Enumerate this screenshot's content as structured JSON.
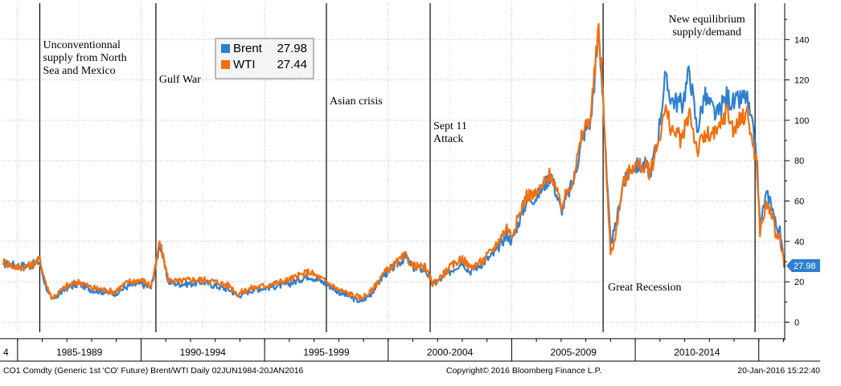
{
  "chart_data": {
    "type": "line",
    "title": "",
    "xlabel": "",
    "ylabel": "",
    "ylim": [
      -5,
      158
    ],
    "y_ticks": [
      0,
      20,
      40,
      60,
      80,
      100,
      120,
      140
    ],
    "grid": true,
    "legend_placement": "top-left",
    "x_start": 1984.42,
    "x_end": 2016.05,
    "x_categories": [
      {
        "label": "4",
        "start": 1984.42,
        "end": 1985.0
      },
      {
        "label": "1985-1989",
        "start": 1985.0,
        "end": 1990.0
      },
      {
        "label": "1990-1994",
        "start": 1990.0,
        "end": 1995.0
      },
      {
        "label": "1995-1999",
        "start": 1995.0,
        "end": 2000.0
      },
      {
        "label": "2000-2004",
        "start": 2000.0,
        "end": 2005.0
      },
      {
        "label": "2005-2009",
        "start": 2005.0,
        "end": 2010.0
      },
      {
        "label": "2010-2014",
        "start": 2010.0,
        "end": 2015.0
      },
      {
        "label": "",
        "start": 2015.0,
        "end": 2016.05
      }
    ],
    "series": [
      {
        "name": "Brent",
        "last_value": "27.98",
        "color": "#2f7fd0",
        "points": [
          [
            1984.42,
            29
          ],
          [
            1985.0,
            28
          ],
          [
            1985.5,
            28
          ],
          [
            1985.9,
            30
          ],
          [
            1986.0,
            24
          ],
          [
            1986.2,
            16
          ],
          [
            1986.4,
            11
          ],
          [
            1986.7,
            14
          ],
          [
            1987.0,
            17
          ],
          [
            1987.5,
            19
          ],
          [
            1988.0,
            16
          ],
          [
            1988.5,
            15
          ],
          [
            1988.9,
            14
          ],
          [
            1989.5,
            18
          ],
          [
            1990.0,
            19
          ],
          [
            1990.4,
            17
          ],
          [
            1990.6,
            28
          ],
          [
            1990.75,
            39
          ],
          [
            1990.9,
            31
          ],
          [
            1991.1,
            20
          ],
          [
            1991.5,
            19
          ],
          [
            1992.0,
            19
          ],
          [
            1992.5,
            20
          ],
          [
            1993.0,
            18
          ],
          [
            1993.6,
            16
          ],
          [
            1993.9,
            13
          ],
          [
            1994.5,
            16
          ],
          [
            1995.0,
            17
          ],
          [
            1996.0,
            19
          ],
          [
            1996.8,
            23
          ],
          [
            1997.5,
            19
          ],
          [
            1998.0,
            15
          ],
          [
            1998.9,
            10
          ],
          [
            1999.3,
            14
          ],
          [
            1999.8,
            23
          ],
          [
            2000.2,
            27
          ],
          [
            2000.7,
            32
          ],
          [
            2001.0,
            27
          ],
          [
            2001.5,
            26
          ],
          [
            2001.8,
            19
          ],
          [
            2002.0,
            20
          ],
          [
            2002.5,
            25
          ],
          [
            2003.0,
            30
          ],
          [
            2003.3,
            25
          ],
          [
            2003.8,
            29
          ],
          [
            2004.3,
            34
          ],
          [
            2004.8,
            43
          ],
          [
            2005.0,
            40
          ],
          [
            2005.6,
            60
          ],
          [
            2006.0,
            62
          ],
          [
            2006.6,
            73
          ],
          [
            2007.0,
            55
          ],
          [
            2007.5,
            70
          ],
          [
            2007.9,
            93
          ],
          [
            2008.2,
            100
          ],
          [
            2008.52,
            143
          ],
          [
            2008.7,
            112
          ],
          [
            2008.85,
            70
          ],
          [
            2009.0,
            40
          ],
          [
            2009.15,
            44
          ],
          [
            2009.5,
            68
          ],
          [
            2009.9,
            77
          ],
          [
            2010.4,
            78
          ],
          [
            2010.6,
            74
          ],
          [
            2010.9,
            90
          ],
          [
            2011.2,
            120
          ],
          [
            2011.5,
            110
          ],
          [
            2011.9,
            108
          ],
          [
            2012.2,
            125
          ],
          [
            2012.5,
            95
          ],
          [
            2012.8,
            112
          ],
          [
            2013.3,
            102
          ],
          [
            2013.7,
            112
          ],
          [
            2014.0,
            108
          ],
          [
            2014.5,
            112
          ],
          [
            2014.9,
            85
          ],
          [
            2015.05,
            48
          ],
          [
            2015.3,
            63
          ],
          [
            2015.5,
            60
          ],
          [
            2015.7,
            48
          ],
          [
            2015.85,
            45
          ],
          [
            2016.0,
            31
          ],
          [
            2016.05,
            27.98
          ]
        ]
      },
      {
        "name": "WTI",
        "last_value": "27.44",
        "color": "#f36f0f",
        "points": [
          [
            1984.42,
            30
          ],
          [
            1985.0,
            27
          ],
          [
            1985.5,
            28
          ],
          [
            1985.9,
            31
          ],
          [
            1986.0,
            26
          ],
          [
            1986.2,
            17
          ],
          [
            1986.4,
            12
          ],
          [
            1986.7,
            15
          ],
          [
            1987.0,
            18
          ],
          [
            1987.5,
            20
          ],
          [
            1988.0,
            17
          ],
          [
            1988.5,
            16
          ],
          [
            1988.9,
            15
          ],
          [
            1989.5,
            20
          ],
          [
            1990.0,
            21
          ],
          [
            1990.4,
            18
          ],
          [
            1990.6,
            28
          ],
          [
            1990.75,
            40
          ],
          [
            1990.9,
            32
          ],
          [
            1991.1,
            21
          ],
          [
            1991.5,
            20
          ],
          [
            1992.0,
            21
          ],
          [
            1992.5,
            21
          ],
          [
            1993.0,
            20
          ],
          [
            1993.6,
            18
          ],
          [
            1993.9,
            14
          ],
          [
            1994.5,
            17
          ],
          [
            1995.0,
            18
          ],
          [
            1996.0,
            21
          ],
          [
            1996.8,
            25
          ],
          [
            1997.5,
            20
          ],
          [
            1998.0,
            16
          ],
          [
            1998.9,
            12
          ],
          [
            1999.3,
            15
          ],
          [
            1999.8,
            24
          ],
          [
            2000.2,
            28
          ],
          [
            2000.7,
            33
          ],
          [
            2001.0,
            28
          ],
          [
            2001.5,
            27
          ],
          [
            2001.8,
            19
          ],
          [
            2002.0,
            21
          ],
          [
            2002.5,
            27
          ],
          [
            2003.0,
            32
          ],
          [
            2003.3,
            27
          ],
          [
            2003.8,
            30
          ],
          [
            2004.3,
            37
          ],
          [
            2004.8,
            47
          ],
          [
            2005.0,
            43
          ],
          [
            2005.6,
            63
          ],
          [
            2006.0,
            63
          ],
          [
            2006.6,
            74
          ],
          [
            2007.0,
            57
          ],
          [
            2007.5,
            72
          ],
          [
            2007.9,
            95
          ],
          [
            2008.2,
            102
          ],
          [
            2008.52,
            145
          ],
          [
            2008.7,
            113
          ],
          [
            2008.85,
            68
          ],
          [
            2009.0,
            35
          ],
          [
            2009.15,
            40
          ],
          [
            2009.5,
            68
          ],
          [
            2009.9,
            78
          ],
          [
            2010.4,
            77
          ],
          [
            2010.6,
            74
          ],
          [
            2010.9,
            88
          ],
          [
            2011.2,
            105
          ],
          [
            2011.5,
            95
          ],
          [
            2011.9,
            90
          ],
          [
            2012.2,
            105
          ],
          [
            2012.5,
            85
          ],
          [
            2012.8,
            92
          ],
          [
            2013.3,
            93
          ],
          [
            2013.7,
            105
          ],
          [
            2014.0,
            95
          ],
          [
            2014.5,
            105
          ],
          [
            2014.9,
            80
          ],
          [
            2015.05,
            45
          ],
          [
            2015.3,
            58
          ],
          [
            2015.5,
            55
          ],
          [
            2015.7,
            43
          ],
          [
            2015.85,
            42
          ],
          [
            2016.0,
            30
          ],
          [
            2016.05,
            27.44
          ]
        ]
      }
    ],
    "events": [
      {
        "x": 1985.9,
        "lines": [
          "Unconventionnal",
          "supply from North",
          "Sea and Mexico"
        ]
      },
      {
        "x": 1990.6,
        "lines": [
          "Gulf War"
        ]
      },
      {
        "x": 1997.5,
        "lines": [
          "Asian crisis"
        ]
      },
      {
        "x": 2001.7,
        "lines": [
          "Sept 11",
          "Attack"
        ]
      },
      {
        "x": 2008.7,
        "lines": [
          "Great Recession"
        ]
      },
      {
        "x": 2014.85,
        "lines": [
          "New equilibrium",
          "supply/demand"
        ]
      }
    ],
    "last_value_label": "27.98",
    "footer_left": "CO1 Comdty (Generic 1st 'CO' Future) Brent/WTI  Daily 02JUN1984-20JAN2016",
    "footer_center": "Copyright© 2016 Bloomberg Finance L.P.",
    "footer_right": "20-Jan-2016  15:22:40"
  }
}
